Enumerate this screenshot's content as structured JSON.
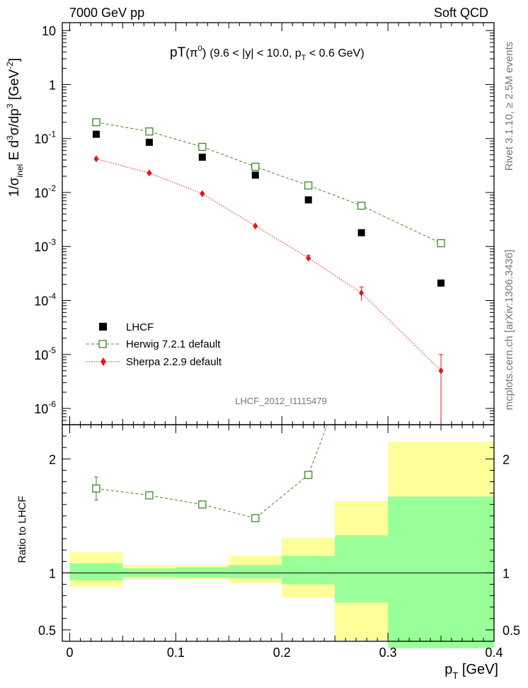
{
  "header": {
    "left": "7000 GeV pp",
    "right": "Soft QCD"
  },
  "side": {
    "top": "Rivet 3.1.10, ≥ 2.5M events",
    "bottom": "mcplots.cern.ch [arXiv:1306.3436]"
  },
  "chart_data": [
    {
      "type": "scatter",
      "title": "pT(π⁰) (9.6 < |y| < 10.0, p_T < 0.6 GeV)",
      "title_parts": {
        "main": "pT",
        "particle": "(π",
        "particle_sup": "0",
        "particle_close": ")",
        "range": "(9.6 < |y| < 10.0, p",
        "range_sub": "T",
        "range_end": " < 0.6 GeV)"
      },
      "ylabel": "1/σ_inel E d³σ/dp³ [GeV⁻²]",
      "ylabel_parts": {
        "a": "1/σ",
        "a_sub": "inel",
        "b": " E d",
        "b_sup": "3",
        "c": "σ/dp",
        "c_sup": "3",
        "d": " [GeV",
        "d_sup": "-2",
        "e": "]"
      },
      "yscale": "log",
      "ylim": [
        5e-07,
        14
      ],
      "xlim": [
        -0.007,
        0.4
      ],
      "ytick_labels": [
        {
          "value": 10,
          "label": "10"
        },
        {
          "value": 1,
          "label": "1"
        },
        {
          "value": 0.1,
          "base": "10",
          "exp": "-1"
        },
        {
          "value": 0.01,
          "base": "10",
          "exp": "-2"
        },
        {
          "value": 0.001,
          "base": "10",
          "exp": "-3"
        },
        {
          "value": 0.0001,
          "base": "10",
          "exp": "-4"
        },
        {
          "value": 1e-05,
          "base": "10",
          "exp": "-5"
        },
        {
          "value": 1e-06,
          "base": "10",
          "exp": "-6"
        }
      ],
      "watermark": "LHCF_2012_I1115479",
      "legend_placement": "bottom-left",
      "series": [
        {
          "name": "LHCF",
          "color": "#000000",
          "marker": "filled-square",
          "x": [
            0.025,
            0.075,
            0.125,
            0.175,
            0.225,
            0.275,
            0.35
          ],
          "y": [
            0.12,
            0.085,
            0.045,
            0.021,
            0.0073,
            0.0018,
            0.00021
          ]
        },
        {
          "name": "Herwig 7.2.1 default",
          "color": "#3a8a1e",
          "marker": "open-square",
          "line": "dashed",
          "x": [
            0.025,
            0.075,
            0.125,
            0.175,
            0.225,
            0.275,
            0.35
          ],
          "y": [
            0.2,
            0.135,
            0.07,
            0.03,
            0.0135,
            0.0057,
            0.00115
          ]
        },
        {
          "name": "Sherpa 2.2.9 default",
          "color": "#e8141b",
          "marker": "filled-diamond",
          "line": "dotted",
          "x": [
            0.025,
            0.075,
            0.125,
            0.175,
            0.225,
            0.275,
            0.35
          ],
          "y": [
            0.042,
            0.023,
            0.0095,
            0.0024,
            0.00061,
            0.000138,
            5e-06
          ],
          "yerr_low": [
            0,
            0,
            0,
            0,
            8e-05,
            4e-05,
            4.5e-06
          ],
          "yerr_high": [
            0,
            0,
            0,
            0,
            8e-05,
            4e-05,
            5e-06
          ]
        }
      ]
    },
    {
      "type": "line",
      "ylabel": "Ratio to LHCF",
      "xlabel": "p_T [GeV]",
      "xlabel_parts": {
        "main": "p",
        "sub": "T",
        "unit": " [GeV]"
      },
      "xlim": [
        -0.007,
        0.4
      ],
      "ylim": [
        0.4,
        2.3
      ],
      "xtick_labels": [
        {
          "value": 0,
          "label": "0"
        },
        {
          "value": 0.1,
          "label": "0.1"
        },
        {
          "value": 0.2,
          "label": "0.2"
        },
        {
          "value": 0.3,
          "label": "0.3"
        },
        {
          "value": 0.4,
          "label": "0.4"
        }
      ],
      "ytick_labels": [
        {
          "value": 2,
          "label": "2"
        },
        {
          "value": 1,
          "label": "1"
        },
        {
          "value": 0.5,
          "label": "0.5"
        }
      ],
      "bands": {
        "edges": [
          0,
          0.05,
          0.1,
          0.15,
          0.2,
          0.25,
          0.3,
          0.4
        ],
        "stat_lo": [
          0.935,
          0.965,
          0.958,
          0.952,
          0.9,
          0.74,
          0.34
        ],
        "stat_hi": [
          1.085,
          1.04,
          1.05,
          1.07,
          1.15,
          1.33,
          1.67
        ],
        "total_lo": [
          0.875,
          0.95,
          0.945,
          0.91,
          0.785,
          0.41,
          0.34
        ],
        "total_hi": [
          1.18,
          1.07,
          1.07,
          1.15,
          1.31,
          1.63,
          2.15
        ],
        "stat_color": "#99ff99",
        "total_color": "#ffff99"
      },
      "series": [
        {
          "name": "Herwig 7.2.1 default",
          "color": "#3a8a1e",
          "x": [
            0.025,
            0.075,
            0.125,
            0.175,
            0.225,
            0.275
          ],
          "y": [
            1.74,
            1.68,
            1.6,
            1.48,
            1.86,
            3.1
          ],
          "yerr": [
            0.1,
            0,
            0,
            0,
            0,
            0
          ]
        }
      ]
    }
  ]
}
